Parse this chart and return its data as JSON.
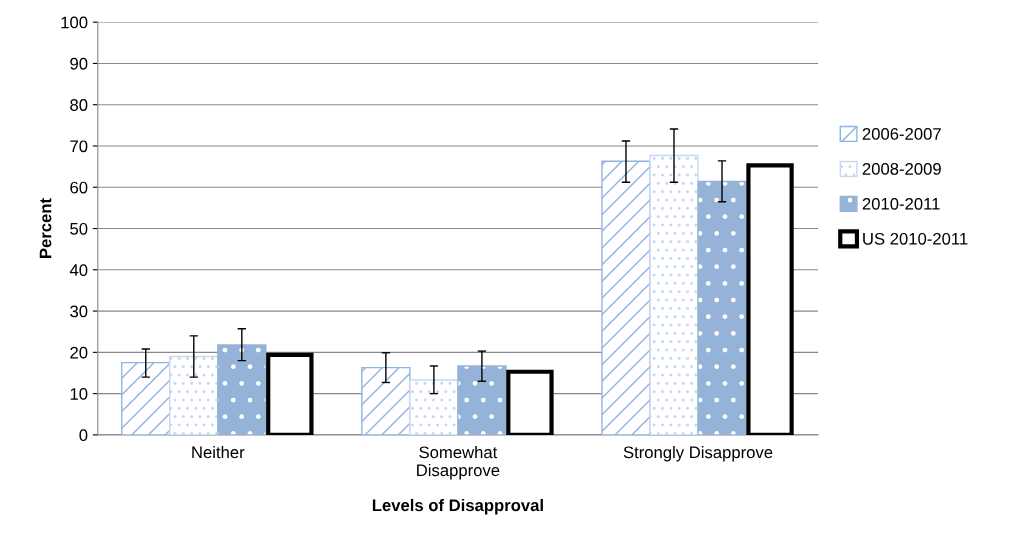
{
  "chart_data": {
    "type": "bar",
    "xlabel": "Levels of Disapproval",
    "ylabel": "Percent",
    "categories": [
      "Neither",
      "Somewhat\nDisapprove",
      "Strongly Disapprove"
    ],
    "series": [
      {
        "name": "2006-2007",
        "color": "#8eb4e3",
        "values": [
          17.5,
          16.3,
          66.3
        ],
        "errors": [
          [
            14,
            20.8
          ],
          [
            12.7,
            19.9
          ],
          [
            61.2,
            71.2
          ]
        ]
      },
      {
        "name": "2008-2009",
        "color": "#c6d9f1",
        "values": [
          19,
          13.3,
          67.7
        ],
        "errors": [
          [
            14,
            24
          ],
          [
            10,
            16.7
          ],
          [
            61.2,
            74.1
          ]
        ]
      },
      {
        "name": "2010-2011",
        "color": "#95b3d7",
        "values": [
          21.8,
          16.7,
          61.4
        ],
        "errors": [
          [
            18,
            25.7
          ],
          [
            13,
            20.3
          ],
          [
            56.5,
            66.4
          ]
        ]
      },
      {
        "name": "US 2010-2011",
        "color": "#000000",
        "values": [
          19.4,
          15.3,
          65.3
        ]
      }
    ],
    "ylim": [
      0,
      100
    ],
    "yticks": [
      0,
      10,
      20,
      30,
      40,
      50,
      60,
      70,
      80,
      90,
      100
    ],
    "grid": "y",
    "legend": "right"
  }
}
